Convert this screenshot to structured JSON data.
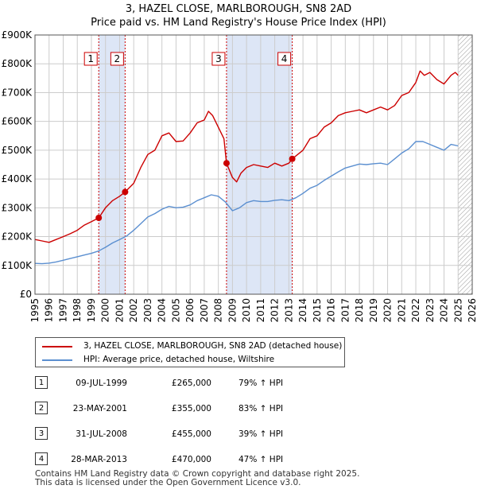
{
  "title_line1": "3, HAZEL CLOSE, MARLBOROUGH, SN8 2AD",
  "title_line2": "Price paid vs. HM Land Registry's House Price Index (HPI)",
  "colors": {
    "property": "#cc0000",
    "hpi": "#5b8fd0",
    "shade": "#dde6f6",
    "grid": "#cccccc"
  },
  "legend": {
    "property_label": "3, HAZEL CLOSE, MARLBOROUGH, SN8 2AD (detached house)",
    "hpi_label": "HPI: Average price, detached house, Wiltshire"
  },
  "sales": [
    {
      "num": "1",
      "date": "09-JUL-1999",
      "price": "£265,000",
      "hpi": "79% ↑ HPI"
    },
    {
      "num": "2",
      "date": "23-MAY-2001",
      "price": "£355,000",
      "hpi": "83% ↑ HPI"
    },
    {
      "num": "3",
      "date": "31-JUL-2008",
      "price": "£455,000",
      "hpi": "39% ↑ HPI"
    },
    {
      "num": "4",
      "date": "28-MAR-2013",
      "price": "£470,000",
      "hpi": "47% ↑ HPI"
    }
  ],
  "footer_line1": "Contains HM Land Registry data © Crown copyright and database right 2025.",
  "footer_line2": "This data is licensed under the Open Government Licence v3.0.",
  "chart_data": {
    "type": "line",
    "xlim": [
      1995,
      2026
    ],
    "ylim": [
      0,
      900000
    ],
    "ytick_labels": [
      "£0",
      "£100K",
      "£200K",
      "£300K",
      "£400K",
      "£500K",
      "£600K",
      "£700K",
      "£800K",
      "£900K"
    ],
    "yticks": [
      0,
      100000,
      200000,
      300000,
      400000,
      500000,
      600000,
      700000,
      800000,
      900000
    ],
    "xticks": [
      1995,
      1996,
      1997,
      1998,
      1999,
      2000,
      2001,
      2002,
      2003,
      2004,
      2005,
      2006,
      2007,
      2008,
      2009,
      2010,
      2011,
      2012,
      2013,
      2014,
      2015,
      2016,
      2017,
      2018,
      2019,
      2020,
      2021,
      2022,
      2023,
      2024,
      2025,
      2026
    ],
    "grid": true,
    "shaded_periods": [
      [
        1999.52,
        2001.39
      ],
      [
        2008.58,
        2013.24
      ]
    ],
    "future_hatch_from": 2025.0,
    "sale_markers": [
      {
        "label": "1",
        "x": 1999.52,
        "y": 265000
      },
      {
        "label": "2",
        "x": 2001.39,
        "y": 355000
      },
      {
        "label": "3",
        "x": 2008.58,
        "y": 455000
      },
      {
        "label": "4",
        "x": 2013.24,
        "y": 470000
      }
    ],
    "series": [
      {
        "name": "3, HAZEL CLOSE, MARLBOROUGH, SN8 2AD (detached house)",
        "x": [
          1995.0,
          1995.5,
          1996.0,
          1996.5,
          1997.0,
          1997.5,
          1998.0,
          1998.5,
          1999.0,
          1999.52,
          2000.0,
          2000.5,
          2001.0,
          2001.39,
          2002.0,
          2002.5,
          2003.0,
          2003.5,
          2004.0,
          2004.5,
          2005.0,
          2005.5,
          2006.0,
          2006.5,
          2007.0,
          2007.3,
          2007.6,
          2008.0,
          2008.4,
          2008.58,
          2009.0,
          2009.3,
          2009.6,
          2010.0,
          2010.5,
          2011.0,
          2011.5,
          2012.0,
          2012.5,
          2013.0,
          2013.24,
          2013.5,
          2014.0,
          2014.5,
          2015.0,
          2015.5,
          2016.0,
          2016.5,
          2017.0,
          2017.5,
          2018.0,
          2018.5,
          2019.0,
          2019.5,
          2020.0,
          2020.5,
          2021.0,
          2021.5,
          2022.0,
          2022.3,
          2022.6,
          2023.0,
          2023.5,
          2024.0,
          2024.5,
          2024.8,
          2025.0
        ],
        "values": [
          190000,
          185000,
          180000,
          190000,
          200000,
          210000,
          222000,
          240000,
          252000,
          265000,
          300000,
          325000,
          340000,
          355000,
          385000,
          440000,
          485000,
          500000,
          550000,
          560000,
          530000,
          532000,
          560000,
          595000,
          605000,
          635000,
          620000,
          580000,
          540000,
          455000,
          405000,
          390000,
          420000,
          440000,
          450000,
          445000,
          440000,
          455000,
          445000,
          455000,
          470000,
          480000,
          500000,
          540000,
          550000,
          580000,
          595000,
          620000,
          630000,
          635000,
          640000,
          630000,
          640000,
          650000,
          640000,
          655000,
          690000,
          700000,
          735000,
          775000,
          760000,
          770000,
          745000,
          730000,
          760000,
          770000,
          760000
        ]
      },
      {
        "name": "HPI: Average price, detached house, Wiltshire",
        "x": [
          1995.0,
          1995.5,
          1996.0,
          1996.5,
          1997.0,
          1997.5,
          1998.0,
          1998.5,
          1999.0,
          1999.5,
          2000.0,
          2000.5,
          2001.0,
          2001.5,
          2002.0,
          2002.5,
          2003.0,
          2003.5,
          2004.0,
          2004.5,
          2005.0,
          2005.5,
          2006.0,
          2006.5,
          2007.0,
          2007.5,
          2008.0,
          2008.5,
          2009.0,
          2009.5,
          2010.0,
          2010.5,
          2011.0,
          2011.5,
          2012.0,
          2012.5,
          2013.0,
          2013.5,
          2014.0,
          2014.5,
          2015.0,
          2015.5,
          2016.0,
          2016.5,
          2017.0,
          2017.5,
          2018.0,
          2018.5,
          2019.0,
          2019.5,
          2020.0,
          2020.5,
          2021.0,
          2021.5,
          2022.0,
          2022.5,
          2023.0,
          2023.5,
          2024.0,
          2024.5,
          2025.0
        ],
        "values": [
          107000,
          106000,
          108000,
          112000,
          118000,
          124000,
          130000,
          136000,
          142000,
          150000,
          163000,
          178000,
          190000,
          202000,
          222000,
          245000,
          268000,
          280000,
          295000,
          305000,
          300000,
          302000,
          310000,
          325000,
          335000,
          345000,
          340000,
          320000,
          290000,
          300000,
          318000,
          325000,
          322000,
          322000,
          326000,
          328000,
          325000,
          335000,
          350000,
          368000,
          378000,
          395000,
          410000,
          425000,
          438000,
          445000,
          452000,
          450000,
          453000,
          455000,
          450000,
          470000,
          490000,
          505000,
          530000,
          530000,
          520000,
          510000,
          500000,
          520000,
          515000
        ]
      }
    ]
  }
}
